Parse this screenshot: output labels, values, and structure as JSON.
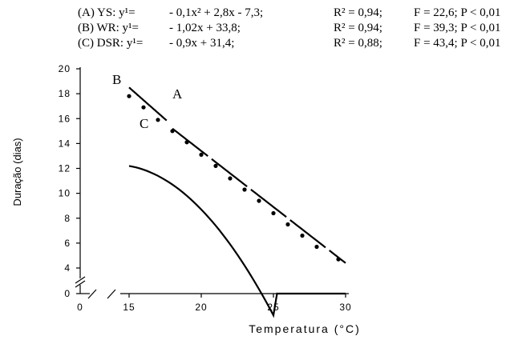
{
  "chart_data": {
    "type": "line",
    "xlabel": "Temperatura (°C)",
    "ylabel": "Duração (dias)",
    "xlim": [
      0,
      30
    ],
    "ylim": [
      0,
      20
    ],
    "x_ticks": [
      0,
      15,
      20,
      25,
      30
    ],
    "y_ticks": [
      0,
      4,
      6,
      8,
      10,
      12,
      14,
      16,
      18,
      20
    ],
    "axis_break": true,
    "grid": false,
    "legend": [
      {
        "label": "(A) YS: y¹=",
        "equation": "- 0,1x² + 2,8x - 7,3;",
        "r2": "R² = 0,94;",
        "stats": "F = 22,6; P < 0,01"
      },
      {
        "label": "(B) WR: y¹=",
        "equation": "- 1,02x + 33,8;",
        "r2": "R² = 0,94;",
        "stats": "F = 39,3; P < 0,01"
      },
      {
        "label": "(C) DSR: y¹=",
        "equation": "- 0,9x + 31,4;",
        "r2": "R² = 0,88;",
        "stats": "F = 43,4; P < 0,01"
      }
    ],
    "curve_labels": {
      "A": "A",
      "B": "B",
      "C": "C"
    },
    "series": [
      {
        "name": "A",
        "kind": "quadratic",
        "coef": [
          -0.1,
          2.8,
          -7.3
        ],
        "x_range": [
          15,
          30
        ],
        "style": "solid"
      },
      {
        "name": "B",
        "kind": "linear",
        "coef": [
          -1.02,
          33.8
        ],
        "x_range": [
          15,
          17.6
        ],
        "style": "solid"
      },
      {
        "name": "C",
        "kind": "linear",
        "coef": [
          -0.9,
          31.4
        ],
        "x_range": [
          18,
          30
        ],
        "style": "dashed"
      }
    ],
    "points": {
      "x": [
        15,
        16,
        17,
        18,
        19,
        20,
        21,
        22,
        23,
        24,
        25,
        26,
        27,
        28,
        29.5
      ],
      "y": [
        17.8,
        16.9,
        15.9,
        15.0,
        14.1,
        13.1,
        12.2,
        11.2,
        10.3,
        9.4,
        8.4,
        7.5,
        6.6,
        5.7,
        4.7
      ]
    }
  }
}
